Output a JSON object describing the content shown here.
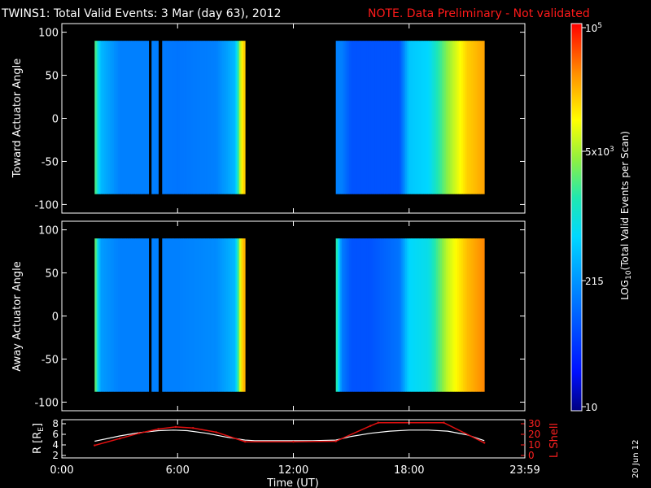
{
  "header": {
    "title": "TWINS1: Total Valid Events:  3 Mar (day  63), 2012",
    "note": "NOTE. Data Preliminary - Not validated"
  },
  "colors": {
    "background": "#000000",
    "note": "#ff1a1a",
    "lshell_line": "#e01010",
    "r_line": "#ffffff"
  },
  "panels": [
    {
      "ylabel": "Toward Actuator Angle",
      "yticks": [
        "100",
        "50",
        "0",
        "-50",
        "-100"
      ]
    },
    {
      "ylabel": "Away Actuator Angle",
      "yticks": [
        "100",
        "50",
        "0",
        "-50",
        "-100"
      ]
    }
  ],
  "bottom_panel": {
    "left_label": "R [R",
    "left_label_sub": "E",
    "left_label_end": "]",
    "right_label": "L Shell",
    "left_ticks": [
      "8",
      "6",
      "4",
      "2"
    ],
    "right_ticks": [
      "30",
      "20",
      "10",
      "0"
    ]
  },
  "xaxis": {
    "label": "Time (UT)",
    "ticks": [
      "0:00",
      "6:00",
      "12:00",
      "18:00",
      "23:59"
    ]
  },
  "colorbar": {
    "label_prefix": "LOG",
    "label_sub": "10",
    "label_suffix": "(Total Valid Events per Scan)",
    "tick_top_base": "10",
    "tick_top_exp": "5",
    "tick_5e3_base": "5x10",
    "tick_5e3_exp": "3",
    "tick_215": "215",
    "tick_10": "10"
  },
  "date_stamp": "20 Jun 12",
  "chart_data": [
    {
      "type": "heatmap",
      "title": "TWINS1: Total Valid Events:  3 Mar (day  63), 2012",
      "xlabel": "Time (UT)",
      "ylabel": "Toward Actuator Angle",
      "xlim": [
        0,
        24
      ],
      "ylim": [
        -110,
        110
      ],
      "zscale": "log",
      "zlim": [
        10,
        100000
      ],
      "data_intervals_hours": [
        [
          1.7,
          4.5
        ],
        [
          4.65,
          5.0
        ],
        [
          5.2,
          9.5
        ],
        [
          14.2,
          21.9
        ]
      ],
      "angle_range": [
        -88,
        90
      ],
      "level_profile": {
        "hours": [
          1.7,
          2.0,
          3.0,
          4.5,
          6.0,
          8.0,
          9.0,
          9.3,
          9.5,
          14.2,
          14.5,
          15.0,
          16.0,
          17.5,
          18.0,
          19.0,
          20.0,
          21.0,
          21.9
        ],
        "level_0to1": [
          0.62,
          0.4,
          0.3,
          0.3,
          0.28,
          0.3,
          0.4,
          0.75,
          0.82,
          0.3,
          0.3,
          0.22,
          0.22,
          0.22,
          0.42,
          0.45,
          0.65,
          0.8,
          0.85
        ]
      }
    },
    {
      "type": "heatmap",
      "xlabel": "Time (UT)",
      "ylabel": "Away Actuator Angle",
      "xlim": [
        0,
        24
      ],
      "ylim": [
        -110,
        110
      ],
      "zscale": "log",
      "zlim": [
        10,
        100000
      ],
      "data_intervals_hours": [
        [
          1.7,
          4.5
        ],
        [
          4.65,
          5.0
        ],
        [
          5.2,
          9.5
        ],
        [
          14.2,
          21.9
        ]
      ],
      "angle_range": [
        -88,
        90
      ],
      "level_profile": {
        "hours": [
          1.7,
          2.0,
          3.0,
          4.5,
          6.0,
          8.0,
          9.0,
          9.3,
          9.5,
          14.2,
          14.5,
          15.0,
          16.0,
          17.5,
          18.0,
          19.0,
          20.0,
          21.0,
          21.9
        ],
        "level_0to1": [
          0.65,
          0.35,
          0.3,
          0.3,
          0.3,
          0.32,
          0.4,
          0.78,
          0.85,
          0.6,
          0.3,
          0.22,
          0.22,
          0.28,
          0.45,
          0.48,
          0.7,
          0.82,
          0.88
        ]
      }
    },
    {
      "type": "line",
      "xlabel": "Time (UT)",
      "ylabel": "R [RE]",
      "xlim": [
        0,
        24
      ],
      "ylim": [
        2,
        8
      ],
      "y2label": "L Shell",
      "y2lim": [
        0,
        30
      ],
      "series": [
        {
          "name": "R [RE]",
          "axis": "left",
          "x": [
            1.7,
            3,
            4,
            5,
            5.8,
            6.5,
            7.5,
            8.5,
            9.5,
            10,
            12,
            13,
            14.2,
            15,
            16,
            17,
            18,
            19,
            20,
            21,
            21.9
          ],
          "y": [
            4.7,
            5.7,
            6.3,
            6.7,
            6.8,
            6.7,
            6.2,
            5.5,
            4.9,
            4.8,
            4.8,
            4.8,
            4.9,
            5.6,
            6.2,
            6.6,
            6.8,
            6.8,
            6.6,
            5.9,
            4.8
          ]
        },
        {
          "name": "L Shell",
          "axis": "right",
          "x": [
            1.7,
            3,
            4,
            5,
            5.9,
            6.8,
            8,
            9.5,
            12,
            14.2,
            16,
            16.4,
            19.8,
            21.9
          ],
          "y": [
            9.5,
            16,
            21,
            25,
            27,
            26,
            22,
            13,
            13,
            13.5,
            28,
            31,
            31,
            12
          ]
        }
      ]
    }
  ]
}
